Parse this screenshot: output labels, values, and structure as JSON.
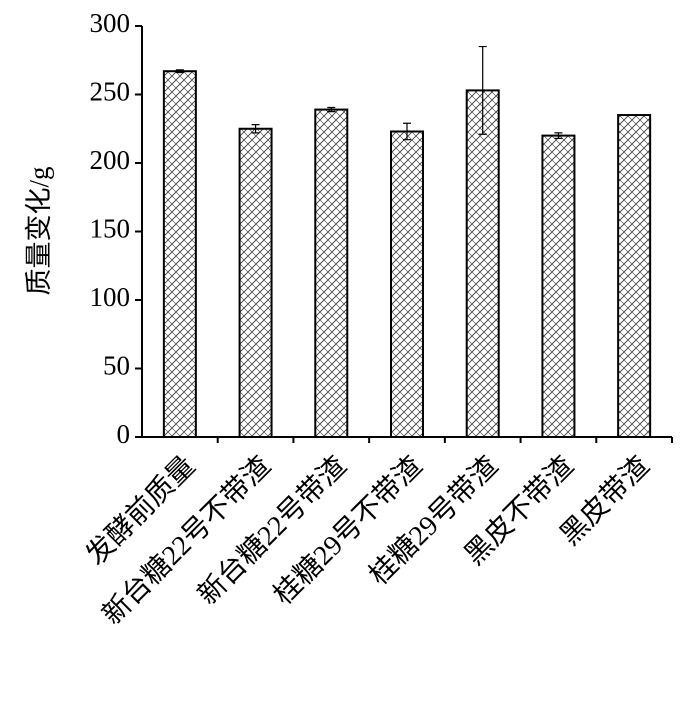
{
  "chart_data": {
    "type": "bar",
    "y_label": "质量变化/g",
    "categories": [
      "发酵前质量",
      "新台糖22号不带渣",
      "新台糖22号带渣",
      "桂糖29号不带渣",
      "桂糖29号带渣",
      "黑皮不带渣",
      "黑皮带渣"
    ],
    "values": [
      267,
      225,
      239,
      223,
      253,
      220,
      235
    ],
    "errors": [
      1,
      3,
      1.5,
      6,
      32,
      2,
      0
    ],
    "color": "#000000",
    "ylim": [
      0,
      300
    ],
    "yticks": [
      0,
      50,
      100,
      150,
      200,
      250,
      300
    ],
    "grid": false
  }
}
